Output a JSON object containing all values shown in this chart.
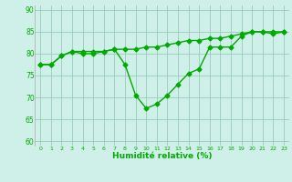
{
  "line1_x": [
    0,
    1,
    2,
    3,
    4,
    5,
    6,
    7,
    8,
    9,
    10,
    11,
    12,
    13,
    14,
    15,
    16,
    17,
    18,
    19,
    20,
    21,
    22,
    23
  ],
  "line1_y": [
    77.5,
    77.5,
    79.5,
    80.5,
    80.0,
    80.0,
    80.5,
    81.0,
    77.5,
    70.5,
    67.5,
    68.5,
    70.5,
    73.0,
    75.5,
    76.5,
    81.5,
    81.5,
    81.5,
    84.0,
    85.0,
    85.0,
    84.5,
    85.0
  ],
  "line2_x": [
    0,
    1,
    2,
    3,
    4,
    5,
    6,
    7,
    8,
    9,
    10,
    11,
    12,
    13,
    14,
    15,
    16,
    17,
    18,
    19,
    20,
    21,
    22,
    23
  ],
  "line2_y": [
    77.5,
    77.5,
    79.5,
    80.5,
    80.5,
    80.5,
    80.5,
    81.0,
    81.0,
    81.0,
    81.5,
    81.5,
    82.0,
    82.5,
    83.0,
    83.0,
    83.5,
    83.5,
    84.0,
    84.5,
    85.0,
    85.0,
    85.0,
    85.0
  ],
  "line_color": "#00aa00",
  "bg_color": "#cff0e8",
  "grid_color": "#99ccbb",
  "xlabel": "Humidité relative (%)",
  "xlim": [
    -0.5,
    23.5
  ],
  "ylim": [
    59,
    91
  ],
  "yticks": [
    60,
    65,
    70,
    75,
    80,
    85,
    90
  ],
  "xticks": [
    0,
    1,
    2,
    3,
    4,
    5,
    6,
    7,
    8,
    9,
    10,
    11,
    12,
    13,
    14,
    15,
    16,
    17,
    18,
    19,
    20,
    21,
    22,
    23
  ],
  "marker": "D",
  "markersize": 2.5,
  "linewidth": 1.0
}
